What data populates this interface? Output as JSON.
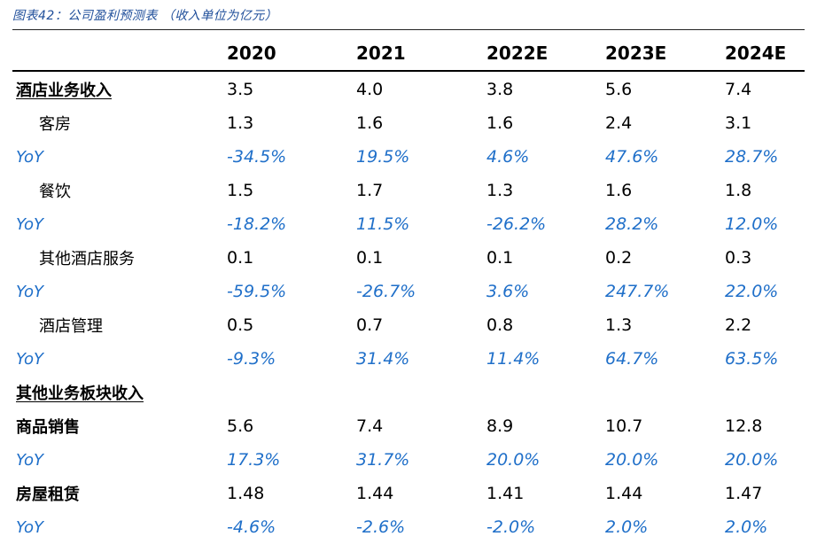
{
  "title": "图表42：公司盈利预测表 （收入单位为亿元）",
  "columns": [
    "2020",
    "2021",
    "2022E",
    "2023E",
    "2024E"
  ],
  "rows": [
    {
      "label": "酒店业务收入",
      "values": [
        "3.5",
        "4.0",
        "3.8",
        "5.6",
        "7.4"
      ],
      "style": "section"
    },
    {
      "label": "客房",
      "values": [
        "1.3",
        "1.6",
        "1.6",
        "2.4",
        "3.1"
      ],
      "style": "sub"
    },
    {
      "label": "YoY",
      "values": [
        "-34.5%",
        "19.5%",
        "4.6%",
        "47.6%",
        "28.7%"
      ],
      "style": "yoy"
    },
    {
      "label": "餐饮",
      "values": [
        "1.5",
        "1.7",
        "1.3",
        "1.6",
        "1.8"
      ],
      "style": "sub"
    },
    {
      "label": "YoY",
      "values": [
        "-18.2%",
        "11.5%",
        "-26.2%",
        "28.2%",
        "12.0%"
      ],
      "style": "yoy"
    },
    {
      "label": "其他酒店服务",
      "values": [
        "0.1",
        "0.1",
        "0.1",
        "0.2",
        "0.3"
      ],
      "style": "sub"
    },
    {
      "label": "YoY",
      "values": [
        "-59.5%",
        "-26.7%",
        "3.6%",
        "247.7%",
        "22.0%"
      ],
      "style": "yoy"
    },
    {
      "label": "酒店管理",
      "values": [
        "0.5",
        "0.7",
        "0.8",
        "1.3",
        "2.2"
      ],
      "style": "sub"
    },
    {
      "label": "YoY",
      "values": [
        "-9.3%",
        "31.4%",
        "11.4%",
        "64.7%",
        "63.5%"
      ],
      "style": "yoy"
    },
    {
      "label": "其他业务板块收入",
      "values": [
        "",
        "",
        "",
        "",
        ""
      ],
      "style": "section"
    },
    {
      "label": "商品销售",
      "values": [
        "5.6",
        "7.4",
        "8.9",
        "10.7",
        "12.8"
      ],
      "style": "main"
    },
    {
      "label": "YoY",
      "values": [
        "17.3%",
        "31.7%",
        "20.0%",
        "20.0%",
        "20.0%"
      ],
      "style": "yoy"
    },
    {
      "label": "房屋租赁",
      "values": [
        "1.48",
        "1.44",
        "1.41",
        "1.44",
        "1.47"
      ],
      "style": "main"
    },
    {
      "label": "YoY",
      "values": [
        "-4.6%",
        "-2.6%",
        "-2.0%",
        "2.0%",
        "2.0%"
      ],
      "style": "yoy"
    }
  ]
}
